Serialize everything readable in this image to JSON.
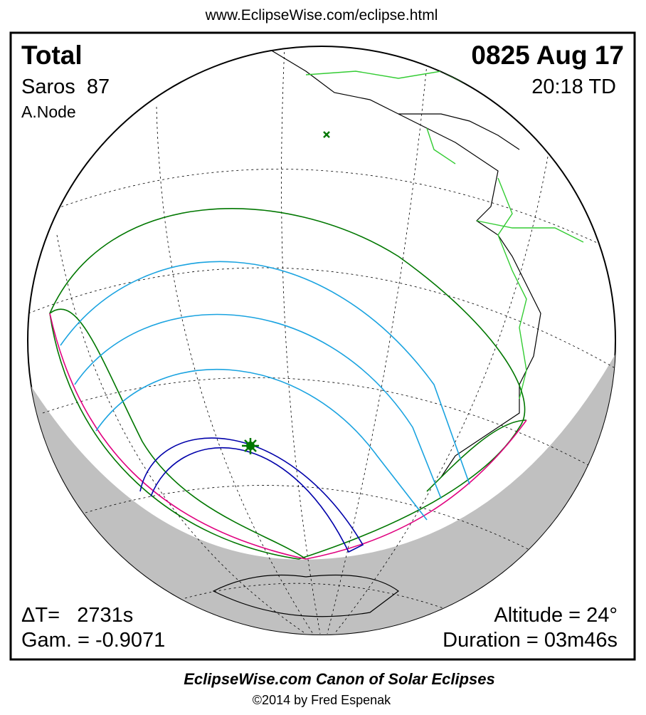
{
  "header": {
    "url": "www.EclipseWise.com/eclipse.html"
  },
  "panel": {
    "type_label": "Total",
    "saros": "Saros  87",
    "node": "A.Node",
    "date": "0825 Aug 17",
    "time": "20:18 TD",
    "delta_t": "ΔT=   2731s",
    "gamma": "Gam. = -0.9071",
    "altitude": "Altitude = 24°",
    "duration": "Duration = 03m46s"
  },
  "footer": {
    "title": "EclipseWise.com Canon of Solar Eclipses",
    "credit": "©2014 by Fred Espenak"
  }
}
